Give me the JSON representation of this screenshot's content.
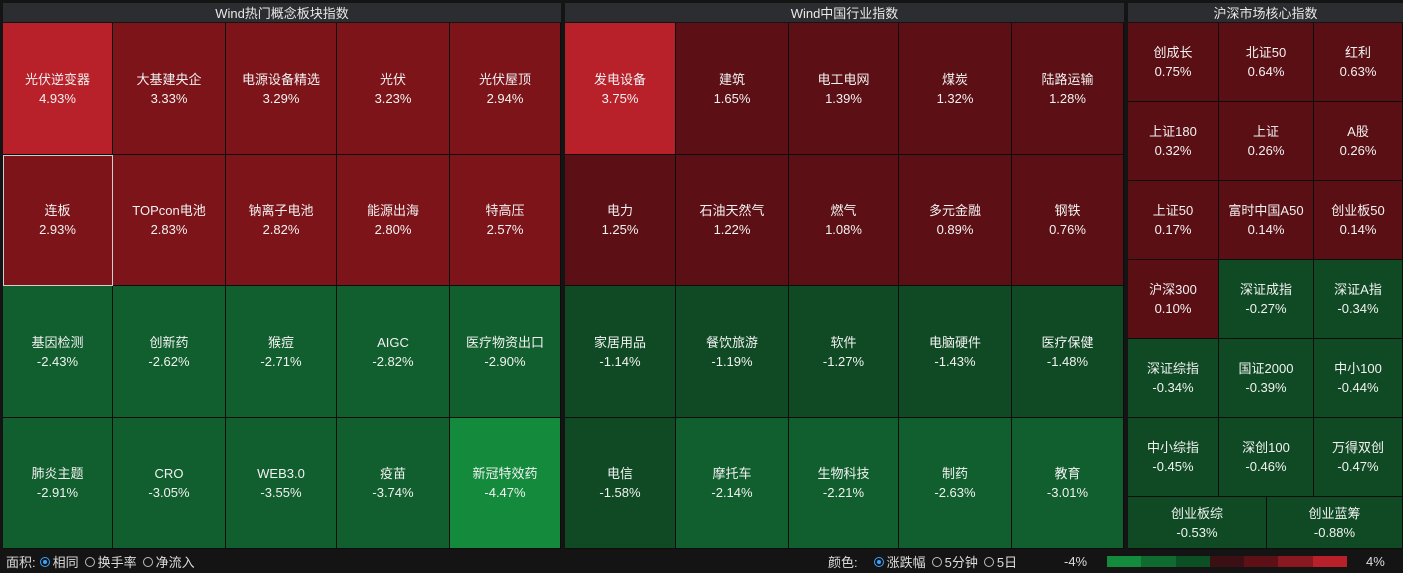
{
  "panels": [
    {
      "title": "Wind热门概念板块指数",
      "cells": [
        {
          "name": "光伏逆变器",
          "pct": "4.93%"
        },
        {
          "name": "大基建央企",
          "pct": "3.33%"
        },
        {
          "name": "电源设备精选",
          "pct": "3.29%"
        },
        {
          "name": "光伏",
          "pct": "3.23%"
        },
        {
          "name": "光伏屋顶",
          "pct": "2.94%"
        },
        {
          "name": "连板",
          "pct": "2.93%"
        },
        {
          "name": "TOPcon电池",
          "pct": "2.83%"
        },
        {
          "name": "钠离子电池",
          "pct": "2.82%"
        },
        {
          "name": "能源出海",
          "pct": "2.80%"
        },
        {
          "name": "特高压",
          "pct": "2.57%"
        },
        {
          "name": "基因检测",
          "pct": "-2.43%"
        },
        {
          "name": "创新药",
          "pct": "-2.62%"
        },
        {
          "name": "猴痘",
          "pct": "-2.71%"
        },
        {
          "name": "AIGC",
          "pct": "-2.82%"
        },
        {
          "name": "医疗物资出口",
          "pct": "-2.90%"
        },
        {
          "name": "肺炎主题",
          "pct": "-2.91%"
        },
        {
          "name": "CRO",
          "pct": "-3.05%"
        },
        {
          "name": "WEB3.0",
          "pct": "-3.55%"
        },
        {
          "name": "疫苗",
          "pct": "-3.74%"
        },
        {
          "name": "新冠特效药",
          "pct": "-4.47%"
        }
      ]
    },
    {
      "title": "Wind中国行业指数",
      "cells": [
        {
          "name": "发电设备",
          "pct": "3.75%"
        },
        {
          "name": "建筑",
          "pct": "1.65%"
        },
        {
          "name": "电工电网",
          "pct": "1.39%"
        },
        {
          "name": "煤炭",
          "pct": "1.32%"
        },
        {
          "name": "陆路运输",
          "pct": "1.28%"
        },
        {
          "name": "电力",
          "pct": "1.25%"
        },
        {
          "name": "石油天然气",
          "pct": "1.22%"
        },
        {
          "name": "燃气",
          "pct": "1.08%"
        },
        {
          "name": "多元金融",
          "pct": "0.89%"
        },
        {
          "name": "钢铁",
          "pct": "0.76%"
        },
        {
          "name": "家居用品",
          "pct": "-1.14%"
        },
        {
          "name": "餐饮旅游",
          "pct": "-1.19%"
        },
        {
          "name": "软件",
          "pct": "-1.27%"
        },
        {
          "name": "电脑硬件",
          "pct": "-1.43%"
        },
        {
          "name": "医疗保健",
          "pct": "-1.48%"
        },
        {
          "name": "电信",
          "pct": "-1.58%"
        },
        {
          "name": "摩托车",
          "pct": "-2.14%"
        },
        {
          "name": "生物科技",
          "pct": "-2.21%"
        },
        {
          "name": "制药",
          "pct": "-2.63%"
        },
        {
          "name": "教育",
          "pct": "-3.01%"
        }
      ]
    },
    {
      "title": "沪深市场核心指数",
      "cells": [
        {
          "name": "创成长",
          "pct": "0.75%"
        },
        {
          "name": "北证50",
          "pct": "0.64%"
        },
        {
          "name": "红利",
          "pct": "0.63%"
        },
        {
          "name": "上证180",
          "pct": "0.32%"
        },
        {
          "name": "上证",
          "pct": "0.26%"
        },
        {
          "name": "A股",
          "pct": "0.26%"
        },
        {
          "name": "上证50",
          "pct": "0.17%"
        },
        {
          "name": "富时中国A50",
          "pct": "0.14%"
        },
        {
          "name": "创业板50",
          "pct": "0.14%"
        },
        {
          "name": "沪深300",
          "pct": "0.10%"
        },
        {
          "name": "深证成指",
          "pct": "-0.27%"
        },
        {
          "name": "深证A指",
          "pct": "-0.34%"
        },
        {
          "name": "深证综指",
          "pct": "-0.34%"
        },
        {
          "name": "国证2000",
          "pct": "-0.39%"
        },
        {
          "name": "中小100",
          "pct": "-0.44%"
        },
        {
          "name": "中小综指",
          "pct": "-0.45%"
        },
        {
          "name": "深创100",
          "pct": "-0.46%"
        },
        {
          "name": "万得双创",
          "pct": "-0.47%"
        },
        {
          "name": "创业板综",
          "pct": "-0.53%"
        },
        {
          "name": "创业蓝筹",
          "pct": "-0.88%"
        }
      ]
    }
  ],
  "footer": {
    "area_label": "面积:",
    "area_options": [
      {
        "label": "相同",
        "selected": true
      },
      {
        "label": "换手率",
        "selected": false
      },
      {
        "label": "净流入",
        "selected": false
      }
    ],
    "color_label": "颜色:",
    "color_options": [
      {
        "label": "涨跌幅",
        "selected": true
      },
      {
        "label": "5分钟",
        "selected": false
      },
      {
        "label": "5日",
        "selected": false
      }
    ],
    "scale_min": "-4%",
    "scale_max": "4%",
    "scale_colors": [
      "#148a3c",
      "#0f6b2f",
      "#0d4f24",
      "#3a1014",
      "#5e1017",
      "#8a1820",
      "#b8202a"
    ]
  },
  "colors": {
    "up_strong": "#b8202a",
    "up_mid": "#7d1419",
    "up_weak": "#5c0f14",
    "down_weak": "#0f4a24",
    "down_mid": "#115e2e",
    "down_strong": "#138a3c",
    "selected_cell": "连板"
  }
}
